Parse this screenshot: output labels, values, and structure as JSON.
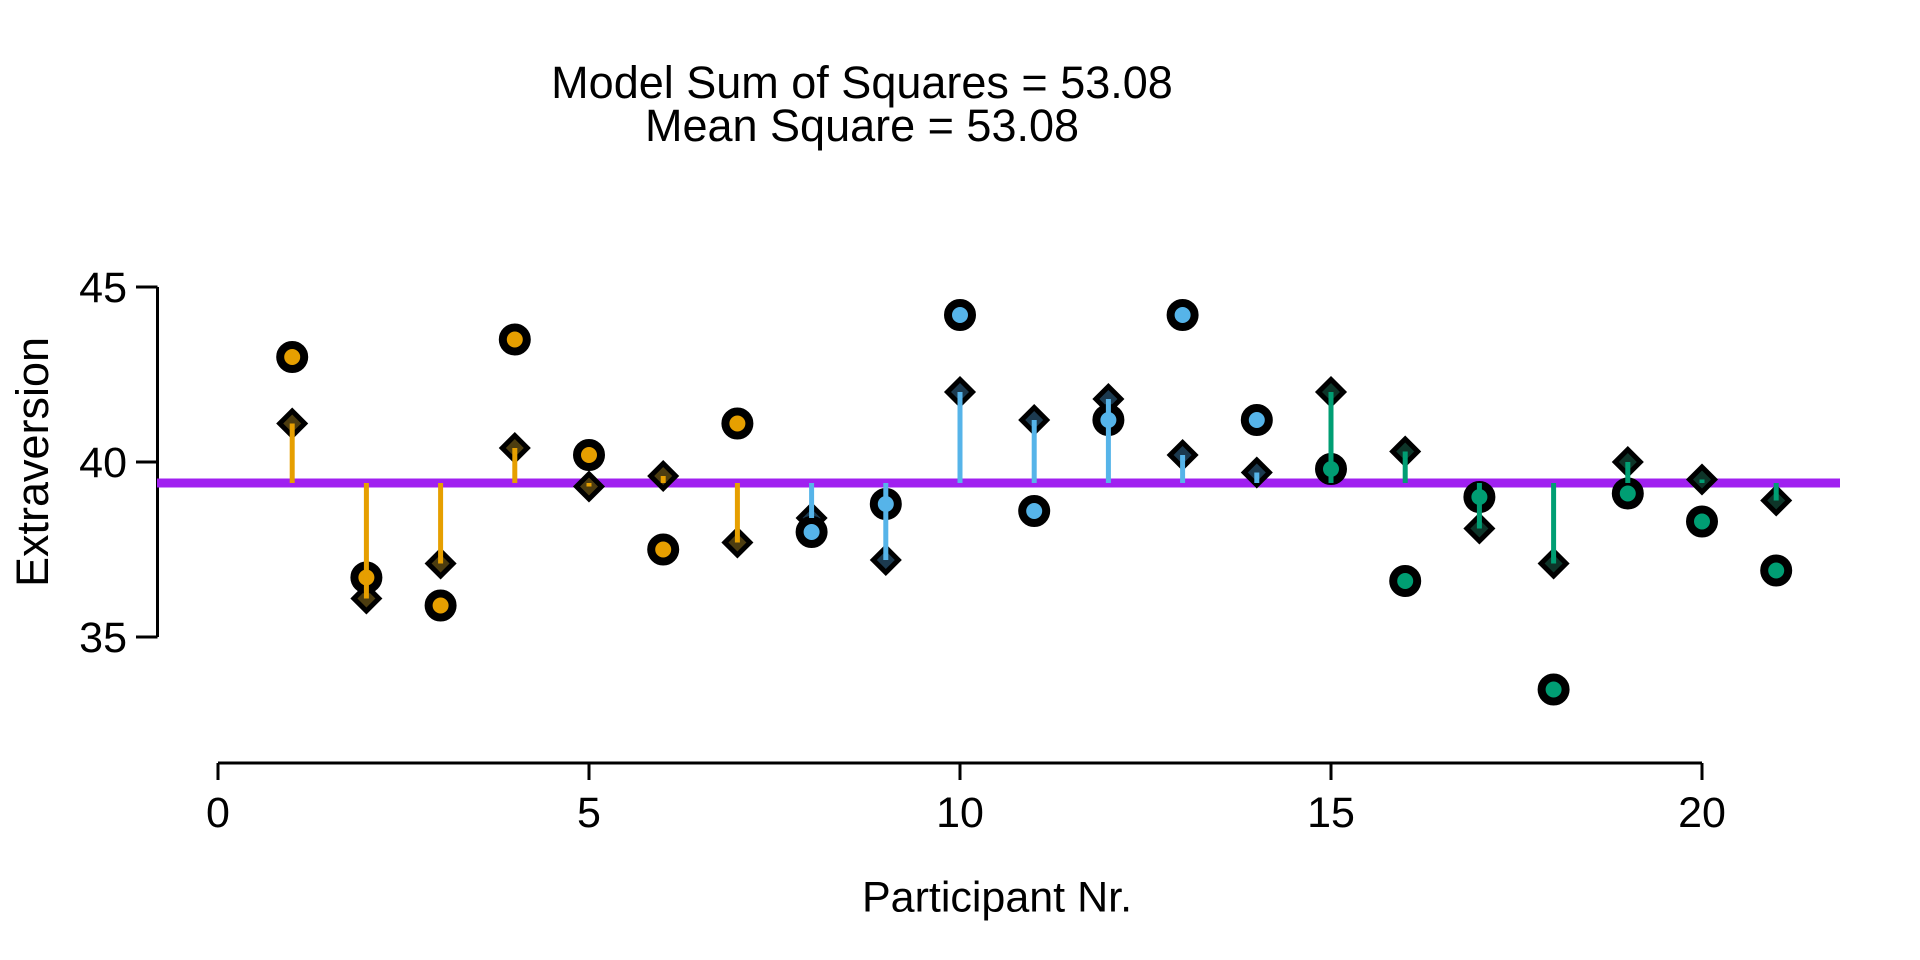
{
  "chart_data": {
    "type": "scatter",
    "title_line1": "Model Sum of Squares = 53.08",
    "title_line2": "Mean Square = 53.08",
    "model_sum_of_squares": 53.08,
    "mean_square": 53.08,
    "xlabel": "Participant Nr.",
    "ylabel": "Extraversion",
    "x_ticks": [
      0,
      5,
      10,
      15,
      20
    ],
    "y_ticks": [
      45,
      40,
      35
    ],
    "xlim": [
      0,
      20
    ],
    "ylim_drawn": [
      35,
      45
    ],
    "grand_mean": 39.4,
    "grand_mean_line_color": "#A020F0",
    "grid": "off",
    "legend": "none",
    "marker_observed": "circle",
    "marker_model": "diamond",
    "marker_outline": "#000000",
    "groups": {
      "group1": {
        "participants": "1-7",
        "color": "#E69F00",
        "dark": "#4D3D10"
      },
      "group2": {
        "participants": "8-14",
        "color": "#56B4E9",
        "dark": "#1C3A4F"
      },
      "group3": {
        "participants": "15-21",
        "color": "#009E73",
        "dark": "#0E3529"
      }
    },
    "points": [
      {
        "nr": 1,
        "group": "group1",
        "observed": 43.0,
        "model": 41.1
      },
      {
        "nr": 2,
        "group": "group1",
        "observed": 36.7,
        "model": 36.1
      },
      {
        "nr": 3,
        "group": "group1",
        "observed": 35.9,
        "model": 37.1
      },
      {
        "nr": 4,
        "group": "group1",
        "observed": 43.5,
        "model": 40.4
      },
      {
        "nr": 5,
        "group": "group1",
        "observed": 40.2,
        "model": 39.3
      },
      {
        "nr": 6,
        "group": "group1",
        "observed": 37.5,
        "model": 39.6
      },
      {
        "nr": 7,
        "group": "group1",
        "observed": 41.1,
        "model": 37.7
      },
      {
        "nr": 8,
        "group": "group2",
        "observed": 38.0,
        "model": 38.4
      },
      {
        "nr": 9,
        "group": "group2",
        "observed": 38.8,
        "model": 37.2
      },
      {
        "nr": 10,
        "group": "group2",
        "observed": 44.2,
        "model": 42.0
      },
      {
        "nr": 11,
        "group": "group2",
        "observed": 38.6,
        "model": 41.2
      },
      {
        "nr": 12,
        "group": "group2",
        "observed": 41.2,
        "model": 41.8
      },
      {
        "nr": 13,
        "group": "group2",
        "observed": 44.2,
        "model": 40.2
      },
      {
        "nr": 14,
        "group": "group2",
        "observed": 41.2,
        "model": 39.7
      },
      {
        "nr": 15,
        "group": "group3",
        "observed": 39.8,
        "model": 42.0
      },
      {
        "nr": 16,
        "group": "group3",
        "observed": 36.6,
        "model": 40.3
      },
      {
        "nr": 17,
        "group": "group3",
        "observed": 39.0,
        "model": 38.1
      },
      {
        "nr": 18,
        "group": "group3",
        "observed": 33.5,
        "model": 37.1
      },
      {
        "nr": 19,
        "group": "group3",
        "observed": 39.1,
        "model": 40.0
      },
      {
        "nr": 20,
        "group": "group3",
        "observed": 38.3,
        "model": 39.5
      },
      {
        "nr": 21,
        "group": "group3",
        "observed": 36.9,
        "model": 38.9
      }
    ]
  }
}
